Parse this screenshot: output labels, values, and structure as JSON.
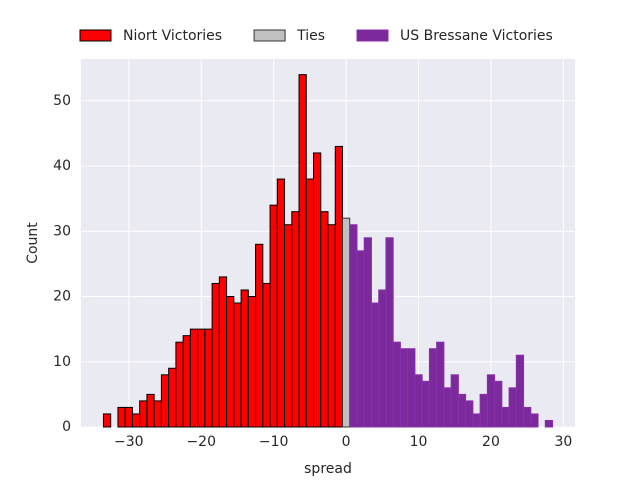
{
  "chart_data": {
    "type": "histogram",
    "xlabel": "spread",
    "ylabel": "Count",
    "xlim": [
      -36.6,
      31.6
    ],
    "ylim": [
      0,
      56.4
    ],
    "xticks": [
      {
        "value": -30,
        "label": "−30"
      },
      {
        "value": -20,
        "label": "−20"
      },
      {
        "value": -10,
        "label": "−10"
      },
      0,
      10,
      20,
      30
    ],
    "yticks": [
      0,
      10,
      20,
      30,
      40,
      50
    ],
    "grid": true,
    "legend": "top",
    "series": [
      {
        "name": "Niort Victories",
        "color": "#ff0000",
        "edgecolor": "#000000",
        "bins": [
          -33.5,
          -32.5,
          -31.5,
          -30.5,
          -29.5,
          -28.5,
          -27.5,
          -26.5,
          -25.5,
          -24.5,
          -23.5,
          -22.5,
          -21.5,
          -20.5,
          -19.5,
          -18.5,
          -17.5,
          -16.5,
          -15.5,
          -14.5,
          -13.5,
          -12.5,
          -11.5,
          -10.5,
          -9.5,
          -8.5,
          -7.5,
          -6.5,
          -5.5,
          -4.5,
          -3.5,
          -2.5,
          -1.5,
          -0.5
        ],
        "values": [
          2,
          0,
          3,
          3,
          2,
          4,
          5,
          4,
          8,
          9,
          13,
          14,
          15,
          15,
          15,
          22,
          23,
          20,
          19,
          21,
          20,
          28,
          22,
          34,
          38,
          31,
          33,
          54,
          38,
          42,
          33,
          31,
          43
        ]
      },
      {
        "name": "Ties",
        "color": "#c0c0c0",
        "edgecolor": "#333333",
        "bins": [
          -0.5,
          0.5
        ],
        "values": [
          32
        ]
      },
      {
        "name": "US Bressane Victories",
        "color": "#7b2a9b",
        "edgecolor": "#8a2fae",
        "bins": [
          0.5,
          1.5,
          2.5,
          3.5,
          4.5,
          5.5,
          6.5,
          7.5,
          8.5,
          9.5,
          10.5,
          11.5,
          12.5,
          13.5,
          14.5,
          15.5,
          16.5,
          17.5,
          18.5,
          19.5,
          20.5,
          21.5,
          22.5,
          23.5,
          24.5,
          25.5,
          26.5,
          27.5,
          28.5
        ],
        "values": [
          31,
          27,
          29,
          19,
          21,
          29,
          13,
          12,
          12,
          8,
          7,
          12,
          13,
          6,
          8,
          5,
          4,
          2,
          5,
          8,
          7,
          3,
          6,
          11,
          3,
          2,
          0,
          1
        ]
      }
    ]
  }
}
